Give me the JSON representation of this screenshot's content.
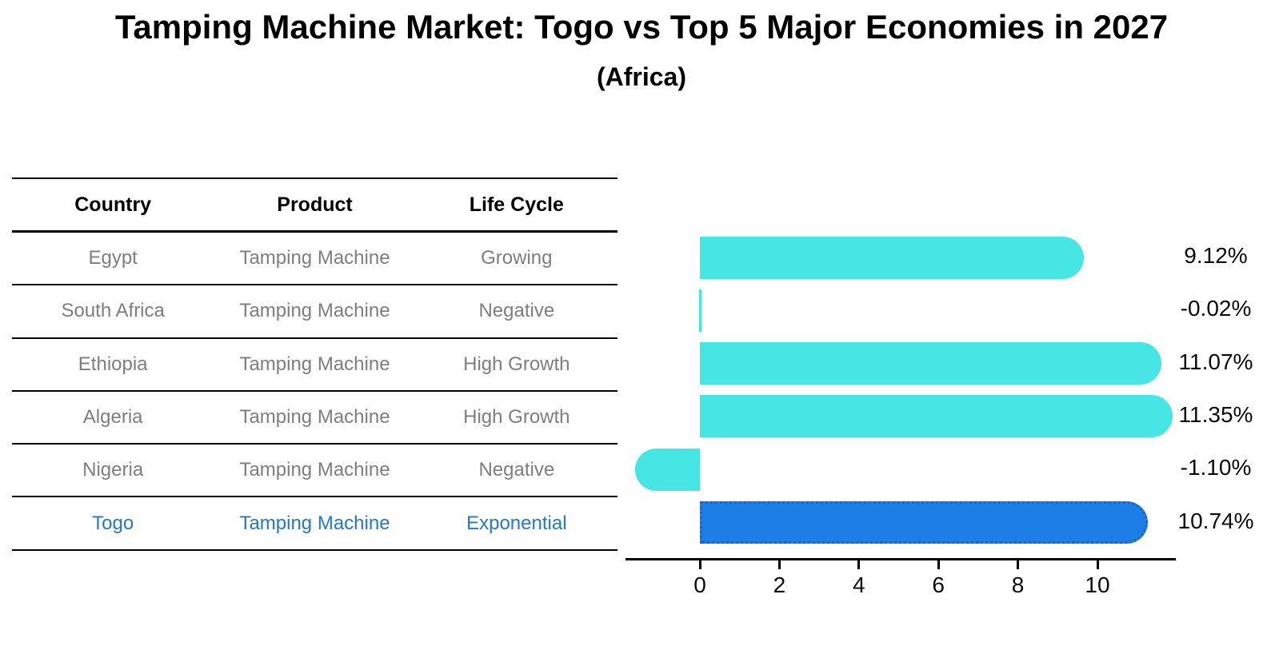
{
  "page": {
    "title": "Tamping Machine Market: Togo vs Top 5 Major Economies in 2027",
    "subtitle": "(Africa)"
  },
  "table": {
    "headers": [
      "Country",
      "Product",
      "Life Cycle"
    ],
    "rows": [
      {
        "country": "Egypt",
        "product": "Tamping Machine",
        "life_cycle": "Growing",
        "highlight": false
      },
      {
        "country": "South Africa",
        "product": "Tamping Machine",
        "life_cycle": "Negative",
        "highlight": false
      },
      {
        "country": "Ethiopia",
        "product": "Tamping Machine",
        "life_cycle": "High Growth",
        "highlight": false
      },
      {
        "country": "Algeria",
        "product": "Tamping Machine",
        "life_cycle": "High Growth",
        "highlight": false
      },
      {
        "country": "Nigeria",
        "product": "Tamping Machine",
        "life_cycle": "Negative",
        "highlight": false
      },
      {
        "country": "Togo",
        "product": "Tamping Machine",
        "life_cycle": "Exponential",
        "highlight": true
      }
    ]
  },
  "chart_data": {
    "type": "bar",
    "orientation": "horizontal",
    "title": "Tamping Machine Market: Togo vs Top 5 Major Economies in 2027",
    "subtitle": "(Africa)",
    "categories": [
      "Egypt",
      "South Africa",
      "Ethiopia",
      "Algeria",
      "Nigeria",
      "Togo"
    ],
    "values": [
      9.12,
      -0.02,
      11.07,
      11.35,
      -1.1,
      10.74
    ],
    "value_labels": [
      "9.12%",
      "-0.02%",
      "11.07%",
      "11.35%",
      "-1.10%",
      "10.74%"
    ],
    "xticks": [
      0,
      2,
      4,
      6,
      8,
      10
    ],
    "xlim": [
      -1.9,
      12.0
    ],
    "grid": false,
    "legend": null,
    "highlight_index": 5,
    "colors": {
      "bar_default": "#45E6E4",
      "bar_highlight": "#1E7EE8",
      "highlight_border": "#1668CF",
      "row_text": "#7E7E7E",
      "highlight_text": "#2478CF",
      "axis": "#000000"
    }
  }
}
